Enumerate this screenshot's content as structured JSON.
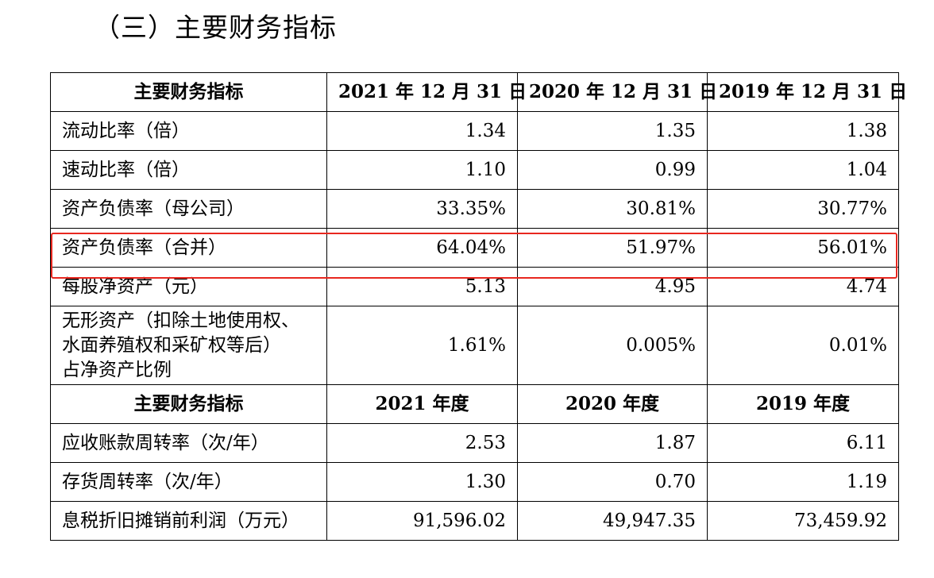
{
  "heading": "（三）主要财务指标",
  "balance_header": {
    "label": "主要财务指标",
    "cols": [
      "2021 年 12 月 31 日",
      "2020 年 12 月 31 日",
      "2019 年 12 月 31 日"
    ]
  },
  "balance_rows": [
    {
      "label": "流动比率（倍）",
      "values": [
        "1.34",
        "1.35",
        "1.38"
      ]
    },
    {
      "label": "速动比率（倍）",
      "values": [
        "1.10",
        "0.99",
        "1.04"
      ]
    },
    {
      "label": "资产负债率（母公司）",
      "values": [
        "33.35%",
        "30.81%",
        "30.77%"
      ]
    },
    {
      "label": "资产负债率（合并）",
      "values": [
        "64.04%",
        "51.97%",
        "56.01%"
      ],
      "highlighted": true
    },
    {
      "label": "每股净资产（元）",
      "values": [
        "5.13",
        "4.95",
        "4.74"
      ]
    },
    {
      "label_lines": [
        "无形资产（扣除土地使用权、",
        "水面养殖权和采矿权等后）",
        "占净资产比例"
      ],
      "values": [
        "1.61%",
        "0.005%",
        "0.01%"
      ]
    }
  ],
  "period_header": {
    "label": "主要财务指标",
    "cols": [
      "2021 年度",
      "2020 年度",
      "2019 年度"
    ]
  },
  "period_rows": [
    {
      "label": "应收账款周转率（次/年）",
      "values": [
        "2.53",
        "1.87",
        "6.11"
      ]
    },
    {
      "label": "存货周转率（次/年）",
      "values": [
        "1.30",
        "0.70",
        "1.19"
      ]
    },
    {
      "label": "息税折旧摊销前利润（万元）",
      "values": [
        "91,596.02",
        "49,947.35",
        "73,459.92"
      ]
    }
  ],
  "colors": {
    "highlight": "#e8271f"
  }
}
